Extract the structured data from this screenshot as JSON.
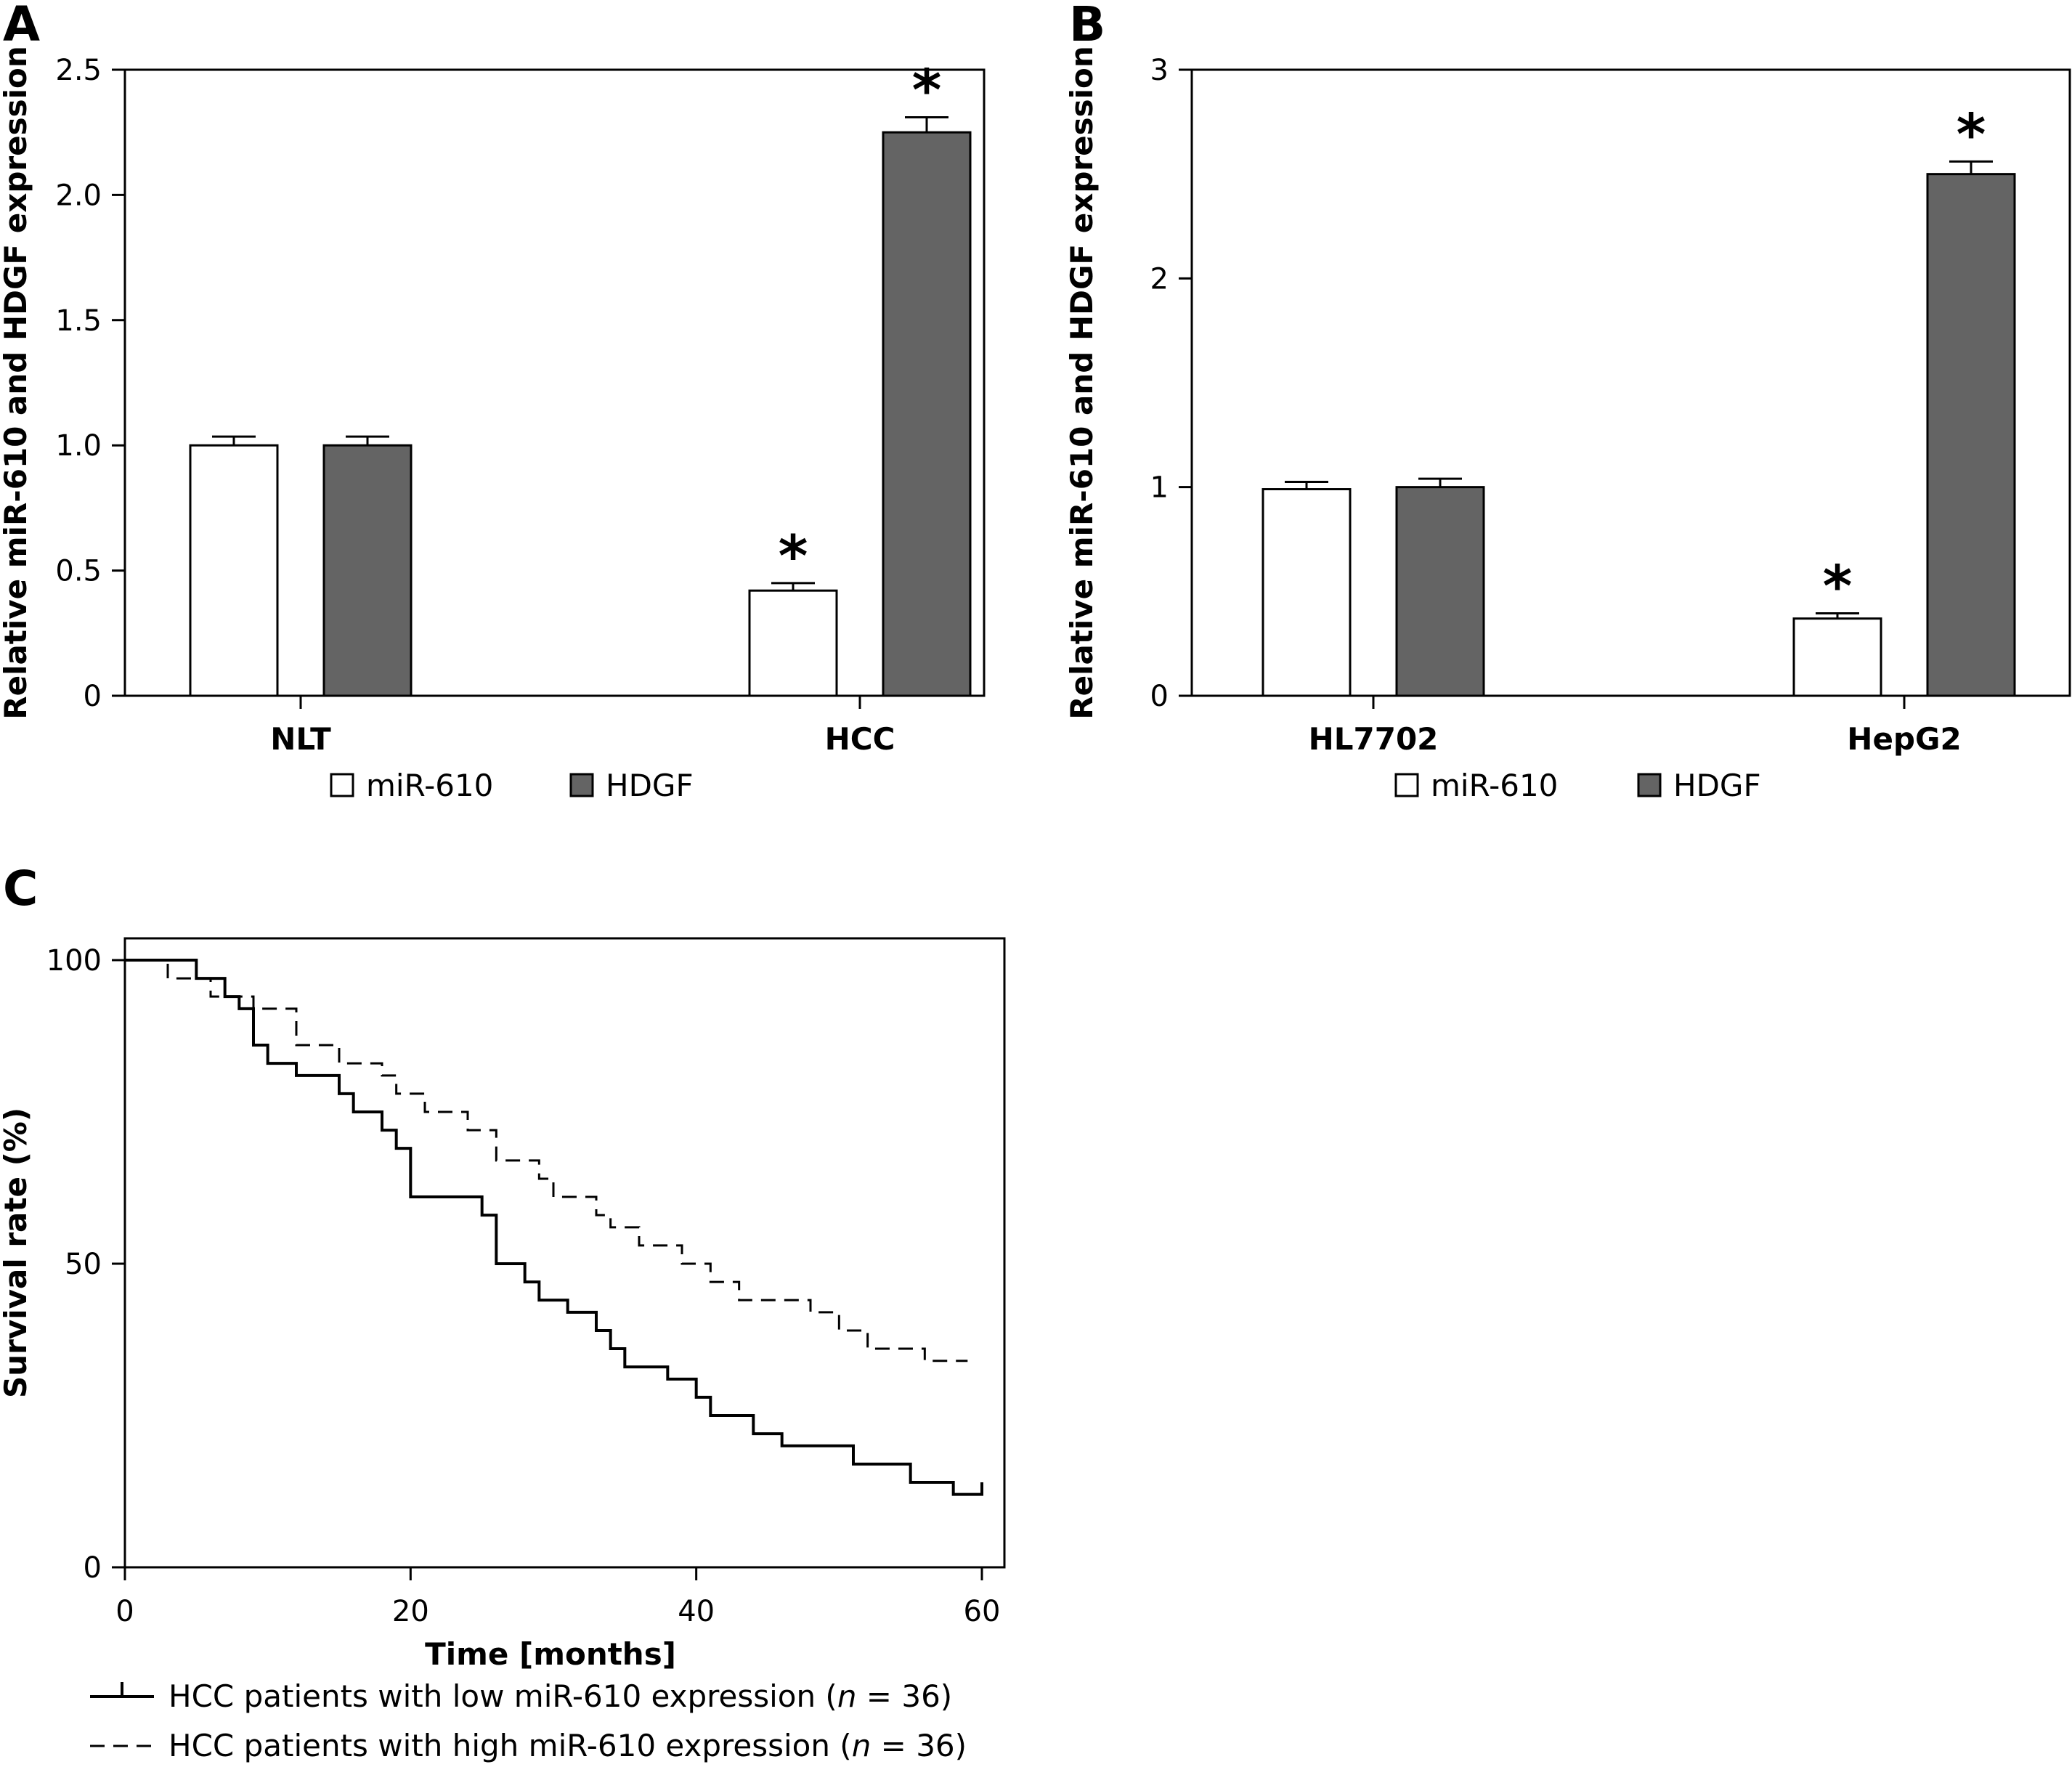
{
  "figure": {
    "panels": [
      "A",
      "B",
      "C"
    ]
  },
  "colors": {
    "mir610_fill": "#ffffff",
    "hdgf_fill": "#646464",
    "stroke": "#000000"
  },
  "chart_data": [
    {
      "id": "A",
      "type": "bar",
      "categories": [
        "NLT",
        "HCC"
      ],
      "series": [
        {
          "name": "miR-610",
          "values": [
            1.0,
            0.42
          ],
          "errors": [
            0.035,
            0.03
          ]
        },
        {
          "name": "HDGF",
          "values": [
            1.0,
            2.25
          ],
          "errors": [
            0.035,
            0.06
          ]
        }
      ],
      "significance": [
        [
          false,
          true
        ],
        [
          false,
          true
        ]
      ],
      "ylabel": "Relative miR-610 and HDGF expression",
      "xlabel": "",
      "ylim": [
        0,
        2.5
      ],
      "yticks": [
        "0",
        "0.5",
        "1.0",
        "1.5",
        "2.0",
        "2.5"
      ],
      "ytick_values": [
        0,
        0.5,
        1.0,
        1.5,
        2.0,
        2.5
      ],
      "legend_position": "bottom-center"
    },
    {
      "id": "B",
      "type": "bar",
      "categories": [
        "HL7702",
        "HepG2"
      ],
      "series": [
        {
          "name": "miR-610",
          "values": [
            0.99,
            0.37
          ],
          "errors": [
            0.035,
            0.025
          ]
        },
        {
          "name": "HDGF",
          "values": [
            1.0,
            2.5
          ],
          "errors": [
            0.04,
            0.06
          ]
        }
      ],
      "significance": [
        [
          false,
          true
        ],
        [
          false,
          true
        ]
      ],
      "ylabel": "Relative miR-610 and HDGF expression",
      "xlabel": "",
      "ylim": [
        0,
        3
      ],
      "yticks": [
        "0",
        "1",
        "2",
        "3"
      ],
      "ytick_values": [
        0,
        1,
        2,
        3
      ],
      "legend_position": "bottom-center"
    },
    {
      "id": "C",
      "type": "line",
      "ylabel": "Survival rate (%)",
      "xlabel": "Time [months]",
      "xlim": [
        0,
        60
      ],
      "ylim": [
        0,
        100
      ],
      "xticks": [
        "0",
        "20",
        "40",
        "60"
      ],
      "xtick_values": [
        0,
        20,
        40,
        60
      ],
      "yticks": [
        "0",
        "50",
        "100"
      ],
      "ytick_values": [
        0,
        50,
        100
      ],
      "legend_position": "bottom",
      "series": [
        {
          "name": "HCC patients with low miR-610 expression (n = 36)",
          "legend_prefix": "HCC patients with low miR-610 expression (",
          "legend_n": "n",
          "legend_suffix": " = 36)",
          "style": "solid",
          "x": [
            0,
            5,
            7,
            8,
            9,
            10,
            12,
            15,
            16,
            18,
            19,
            20,
            25,
            26,
            28,
            29,
            31,
            33,
            34,
            35,
            38,
            40,
            41,
            44,
            46,
            51,
            55,
            58,
            60
          ],
          "y": [
            100,
            97,
            94,
            92,
            86,
            83,
            81,
            78,
            75,
            72,
            69,
            61,
            58,
            50,
            47,
            44,
            42,
            39,
            36,
            33,
            31,
            28,
            25,
            22,
            20,
            17,
            14,
            12,
            14
          ]
        },
        {
          "name": "HCC patients with high miR-610 expression (n = 36)",
          "legend_prefix": "HCC patients with high miR-610 expression (",
          "legend_n": "n",
          "legend_suffix": " = 36)",
          "style": "dashed",
          "x": [
            0,
            3,
            6,
            9,
            12,
            15,
            18,
            19,
            21,
            24,
            26,
            29,
            30,
            33,
            34,
            36,
            39,
            41,
            43,
            48,
            50,
            52,
            56,
            59
          ],
          "y": [
            100,
            97,
            94,
            92,
            86,
            83,
            81,
            78,
            75,
            72,
            67,
            64,
            61,
            58,
            56,
            53,
            50,
            47,
            44,
            42,
            39,
            36,
            34,
            34
          ]
        }
      ]
    }
  ]
}
